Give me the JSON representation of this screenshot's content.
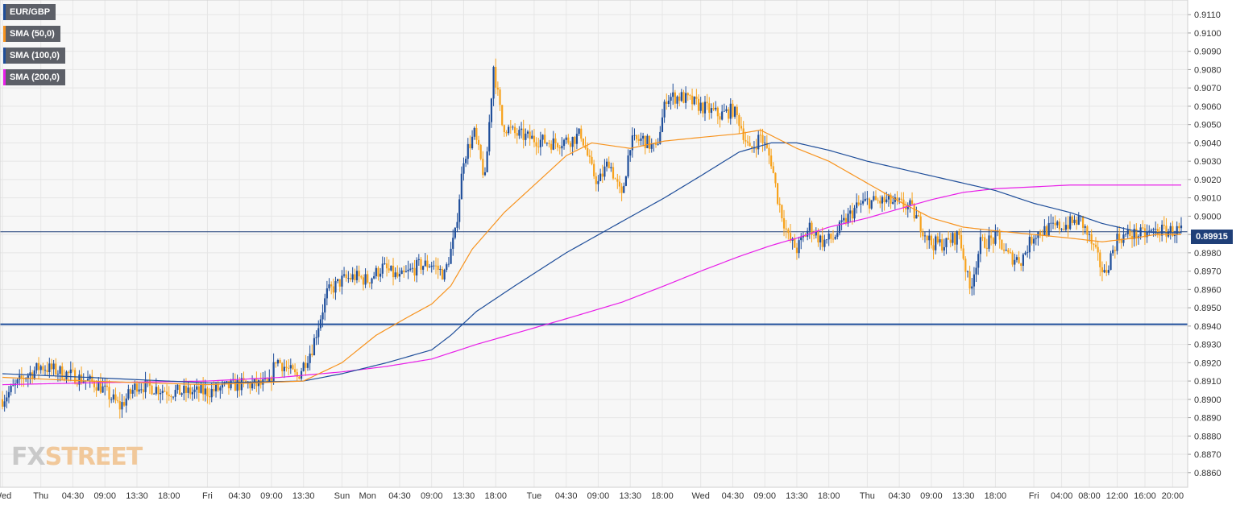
{
  "legend": [
    {
      "label": "EUR/GBP",
      "color": "#1f4e9a"
    },
    {
      "label": "SMA (50,0)",
      "color": "#f7931e"
    },
    {
      "label": "SMA (100,0)",
      "color": "#1f4e9a"
    },
    {
      "label": "SMA (200,0)",
      "color": "#e81ee8"
    }
  ],
  "watermark": {
    "part1": "FX",
    "part2": "STREET"
  },
  "current_price": "0.89915",
  "colors": {
    "up": "#1f4e9a",
    "down": "#f7a21c",
    "sma50": "#f7931e",
    "sma100": "#1f4e9a",
    "sma200": "#e81ee8",
    "grid": "#e6e6e6",
    "support": "#1f4e9a",
    "background": "#f7f7f7"
  },
  "chart_data": {
    "type": "line",
    "title": "",
    "ylim": [
      0.8852,
      0.9118
    ],
    "y_ticks": [
      "0.8860",
      "0.8870",
      "0.8880",
      "0.8890",
      "0.8900",
      "0.8910",
      "0.8920",
      "0.8930",
      "0.8940",
      "0.8950",
      "0.8960",
      "0.8970",
      "0.8980",
      "0.8990",
      "0.9000",
      "0.9010",
      "0.9020",
      "0.9030",
      "0.9040",
      "0.9050",
      "0.9060",
      "0.9070",
      "0.9080",
      "0.9090",
      "0.9100",
      "0.9110"
    ],
    "x_ticks": [
      "Wed",
      "Thu",
      "04:30",
      "09:00",
      "13:30",
      "18:00",
      "Fri",
      "04:30",
      "09:00",
      "13:30",
      "Sun",
      "Mon",
      "04:30",
      "09:00",
      "13:30",
      "18:00",
      "Tue",
      "04:30",
      "09:00",
      "13:30",
      "18:00",
      "Wed",
      "04:30",
      "09:00",
      "13:30",
      "18:00",
      "Thu",
      "04:30",
      "09:00",
      "13:30",
      "18:00",
      "Fri",
      "04:00",
      "08:00",
      "12:00",
      "16:00",
      "20:00"
    ],
    "x_tick_index": [
      0,
      18,
      33,
      48,
      63,
      78,
      96,
      111,
      126,
      141,
      159,
      171,
      186,
      201,
      216,
      231,
      249,
      264,
      279,
      294,
      309,
      327,
      342,
      357,
      372,
      387,
      405,
      420,
      435,
      450,
      465,
      483,
      496,
      509,
      522,
      535,
      548
    ],
    "n_bars": 553,
    "grid": true,
    "support_level": 0.8941,
    "last_price": 0.89915,
    "price_anchors": [
      [
        0,
        0.89
      ],
      [
        10,
        0.8912
      ],
      [
        18,
        0.8918
      ],
      [
        30,
        0.8914
      ],
      [
        45,
        0.8908
      ],
      [
        55,
        0.8896
      ],
      [
        63,
        0.8908
      ],
      [
        72,
        0.8906
      ],
      [
        80,
        0.8904
      ],
      [
        96,
        0.8904
      ],
      [
        110,
        0.8908
      ],
      [
        125,
        0.8908
      ],
      [
        128,
        0.8922
      ],
      [
        138,
        0.8912
      ],
      [
        145,
        0.8928
      ],
      [
        152,
        0.8958
      ],
      [
        159,
        0.8965
      ],
      [
        165,
        0.8967
      ],
      [
        171,
        0.8965
      ],
      [
        178,
        0.8972
      ],
      [
        186,
        0.8966
      ],
      [
        195,
        0.8973
      ],
      [
        201,
        0.8974
      ],
      [
        207,
        0.8968
      ],
      [
        212,
        0.899
      ],
      [
        216,
        0.9032
      ],
      [
        221,
        0.9045
      ],
      [
        226,
        0.902
      ],
      [
        230,
        0.9082
      ],
      [
        234,
        0.905
      ],
      [
        240,
        0.9045
      ],
      [
        249,
        0.9042
      ],
      [
        258,
        0.904
      ],
      [
        267,
        0.9042
      ],
      [
        271,
        0.9045
      ],
      [
        276,
        0.9025
      ],
      [
        279,
        0.9018
      ],
      [
        284,
        0.903
      ],
      [
        290,
        0.901
      ],
      [
        294,
        0.904
      ],
      [
        300,
        0.9042
      ],
      [
        306,
        0.9036
      ],
      [
        311,
        0.9065
      ],
      [
        318,
        0.9065
      ],
      [
        327,
        0.906
      ],
      [
        336,
        0.9055
      ],
      [
        342,
        0.9058
      ],
      [
        345,
        0.9052
      ],
      [
        350,
        0.9035
      ],
      [
        355,
        0.9044
      ],
      [
        360,
        0.903
      ],
      [
        363,
        0.901
      ],
      [
        368,
        0.8988
      ],
      [
        372,
        0.8982
      ],
      [
        378,
        0.8994
      ],
      [
        384,
        0.8986
      ],
      [
        389,
        0.8988
      ],
      [
        395,
        0.8998
      ],
      [
        400,
        0.9005
      ],
      [
        405,
        0.9008
      ],
      [
        415,
        0.9008
      ],
      [
        425,
        0.9005
      ],
      [
        430,
        0.8995
      ],
      [
        435,
        0.8985
      ],
      [
        442,
        0.8985
      ],
      [
        448,
        0.899
      ],
      [
        453,
        0.896
      ],
      [
        458,
        0.8985
      ],
      [
        466,
        0.8988
      ],
      [
        471,
        0.8978
      ],
      [
        477,
        0.8976
      ],
      [
        483,
        0.899
      ],
      [
        490,
        0.8993
      ],
      [
        500,
        0.8996
      ],
      [
        505,
        0.8998
      ],
      [
        510,
        0.8985
      ],
      [
        516,
        0.8968
      ],
      [
        522,
        0.8988
      ],
      [
        528,
        0.899
      ],
      [
        535,
        0.899
      ],
      [
        540,
        0.8992
      ]
    ],
    "sma_50_anchors": [
      [
        0,
        0.8912
      ],
      [
        40,
        0.891
      ],
      [
        96,
        0.8908
      ],
      [
        141,
        0.891
      ],
      [
        159,
        0.892
      ],
      [
        175,
        0.8935
      ],
      [
        190,
        0.8945
      ],
      [
        201,
        0.8952
      ],
      [
        210,
        0.8962
      ],
      [
        220,
        0.8982
      ],
      [
        235,
        0.9002
      ],
      [
        250,
        0.9018
      ],
      [
        264,
        0.9033
      ],
      [
        276,
        0.904
      ],
      [
        294,
        0.9037
      ],
      [
        310,
        0.9041
      ],
      [
        327,
        0.9043
      ],
      [
        345,
        0.9045
      ],
      [
        355,
        0.9047
      ],
      [
        372,
        0.9037
      ],
      [
        387,
        0.903
      ],
      [
        405,
        0.9018
      ],
      [
        420,
        0.9008
      ],
      [
        435,
        0.8999
      ],
      [
        450,
        0.8994
      ],
      [
        465,
        0.8992
      ],
      [
        483,
        0.899
      ],
      [
        500,
        0.8988
      ],
      [
        515,
        0.8986
      ],
      [
        530,
        0.8988
      ],
      [
        540,
        0.899
      ]
    ],
    "sma_100_anchors": [
      [
        0,
        0.8914
      ],
      [
        40,
        0.8912
      ],
      [
        96,
        0.8909
      ],
      [
        141,
        0.891
      ],
      [
        159,
        0.8914
      ],
      [
        180,
        0.892
      ],
      [
        201,
        0.8927
      ],
      [
        210,
        0.8935
      ],
      [
        222,
        0.8948
      ],
      [
        240,
        0.8962
      ],
      [
        264,
        0.898
      ],
      [
        290,
        0.8997
      ],
      [
        310,
        0.901
      ],
      [
        327,
        0.9022
      ],
      [
        345,
        0.9035
      ],
      [
        360,
        0.904
      ],
      [
        372,
        0.904
      ],
      [
        387,
        0.9036
      ],
      [
        405,
        0.903
      ],
      [
        420,
        0.9026
      ],
      [
        435,
        0.9022
      ],
      [
        450,
        0.9018
      ],
      [
        465,
        0.9014
      ],
      [
        483,
        0.9007
      ],
      [
        500,
        0.9002
      ],
      [
        515,
        0.8996
      ],
      [
        530,
        0.8992
      ],
      [
        540,
        0.8991
      ]
    ],
    "sma_200_anchors": [
      [
        0,
        0.8908
      ],
      [
        40,
        0.8909
      ],
      [
        96,
        0.891
      ],
      [
        130,
        0.8912
      ],
      [
        159,
        0.8915
      ],
      [
        180,
        0.8918
      ],
      [
        201,
        0.8922
      ],
      [
        222,
        0.893
      ],
      [
        240,
        0.8936
      ],
      [
        264,
        0.8944
      ],
      [
        290,
        0.8953
      ],
      [
        310,
        0.8962
      ],
      [
        327,
        0.897
      ],
      [
        345,
        0.8978
      ],
      [
        360,
        0.8984
      ],
      [
        372,
        0.8988
      ],
      [
        387,
        0.8994
      ],
      [
        405,
        0.8999
      ],
      [
        420,
        0.9004
      ],
      [
        435,
        0.9009
      ],
      [
        450,
        0.9013
      ],
      [
        465,
        0.9015
      ],
      [
        483,
        0.9016
      ],
      [
        500,
        0.9017
      ],
      [
        515,
        0.9017
      ],
      [
        530,
        0.9017
      ],
      [
        540,
        0.9017
      ]
    ]
  }
}
